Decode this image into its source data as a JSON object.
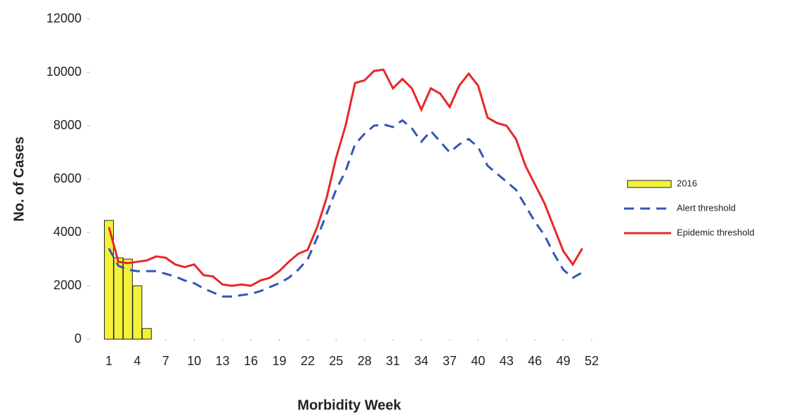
{
  "chart_data": {
    "type": "combo",
    "x_label": "Morbidity Week",
    "y_label": "No. of Cases",
    "x": [
      1,
      2,
      3,
      4,
      5,
      6,
      7,
      8,
      9,
      10,
      11,
      12,
      13,
      14,
      15,
      16,
      17,
      18,
      19,
      20,
      21,
      22,
      23,
      24,
      25,
      26,
      27,
      28,
      29,
      30,
      31,
      32,
      33,
      34,
      35,
      36,
      37,
      38,
      39,
      40,
      41,
      42,
      43,
      44,
      45,
      46,
      47,
      48,
      49,
      50,
      51,
      52
    ],
    "xlim": [
      0,
      53
    ],
    "xticks": [
      1,
      4,
      7,
      10,
      13,
      16,
      19,
      22,
      25,
      28,
      31,
      34,
      37,
      40,
      43,
      46,
      49,
      52
    ],
    "ylim": [
      0,
      12000
    ],
    "yticks": [
      0,
      2000,
      4000,
      6000,
      8000,
      10000,
      12000
    ],
    "series": [
      {
        "name": "2016",
        "type": "bar",
        "color": "#f2f23a",
        "values": [
          4450,
          3050,
          3000,
          2000,
          400,
          null,
          null,
          null,
          null,
          null,
          null,
          null,
          null,
          null,
          null,
          null,
          null,
          null,
          null,
          null,
          null,
          null,
          null,
          null,
          null,
          null,
          null,
          null,
          null,
          null,
          null,
          null,
          null,
          null,
          null,
          null,
          null,
          null,
          null,
          null,
          null,
          null,
          null,
          null,
          null,
          null,
          null,
          null,
          null,
          null,
          null,
          null
        ]
      },
      {
        "name": "Alert threshold",
        "type": "line",
        "dashed": true,
        "color": "#3553b8",
        "values": [
          3400,
          2750,
          2600,
          2550,
          2550,
          2550,
          2450,
          2350,
          2200,
          2100,
          1900,
          1750,
          1600,
          1600,
          1650,
          1700,
          1800,
          1950,
          2100,
          2300,
          2600,
          3000,
          3800,
          4700,
          5600,
          6300,
          7300,
          7700,
          8000,
          8050,
          7950,
          8200,
          7900,
          7400,
          7800,
          7400,
          7000,
          7300,
          7500,
          7200,
          6500,
          6200,
          5900,
          5600,
          5000,
          4400,
          3900,
          3200,
          2600,
          2300,
          2500,
          null
        ]
      },
      {
        "name": "Epidemic threshold",
        "type": "line",
        "dashed": false,
        "color": "#e8262a",
        "values": [
          4200,
          2900,
          2850,
          2900,
          2950,
          3100,
          3050,
          2800,
          2700,
          2800,
          2400,
          2350,
          2050,
          2000,
          2050,
          2000,
          2200,
          2300,
          2550,
          2900,
          3200,
          3350,
          4200,
          5300,
          6800,
          8000,
          9600,
          9700,
          10050,
          10100,
          9400,
          9750,
          9400,
          8600,
          9400,
          9200,
          8700,
          9500,
          9950,
          9500,
          8300,
          8100,
          8000,
          7500,
          6500,
          5800,
          5100,
          4200,
          3300,
          2800,
          3400,
          null
        ]
      }
    ]
  }
}
